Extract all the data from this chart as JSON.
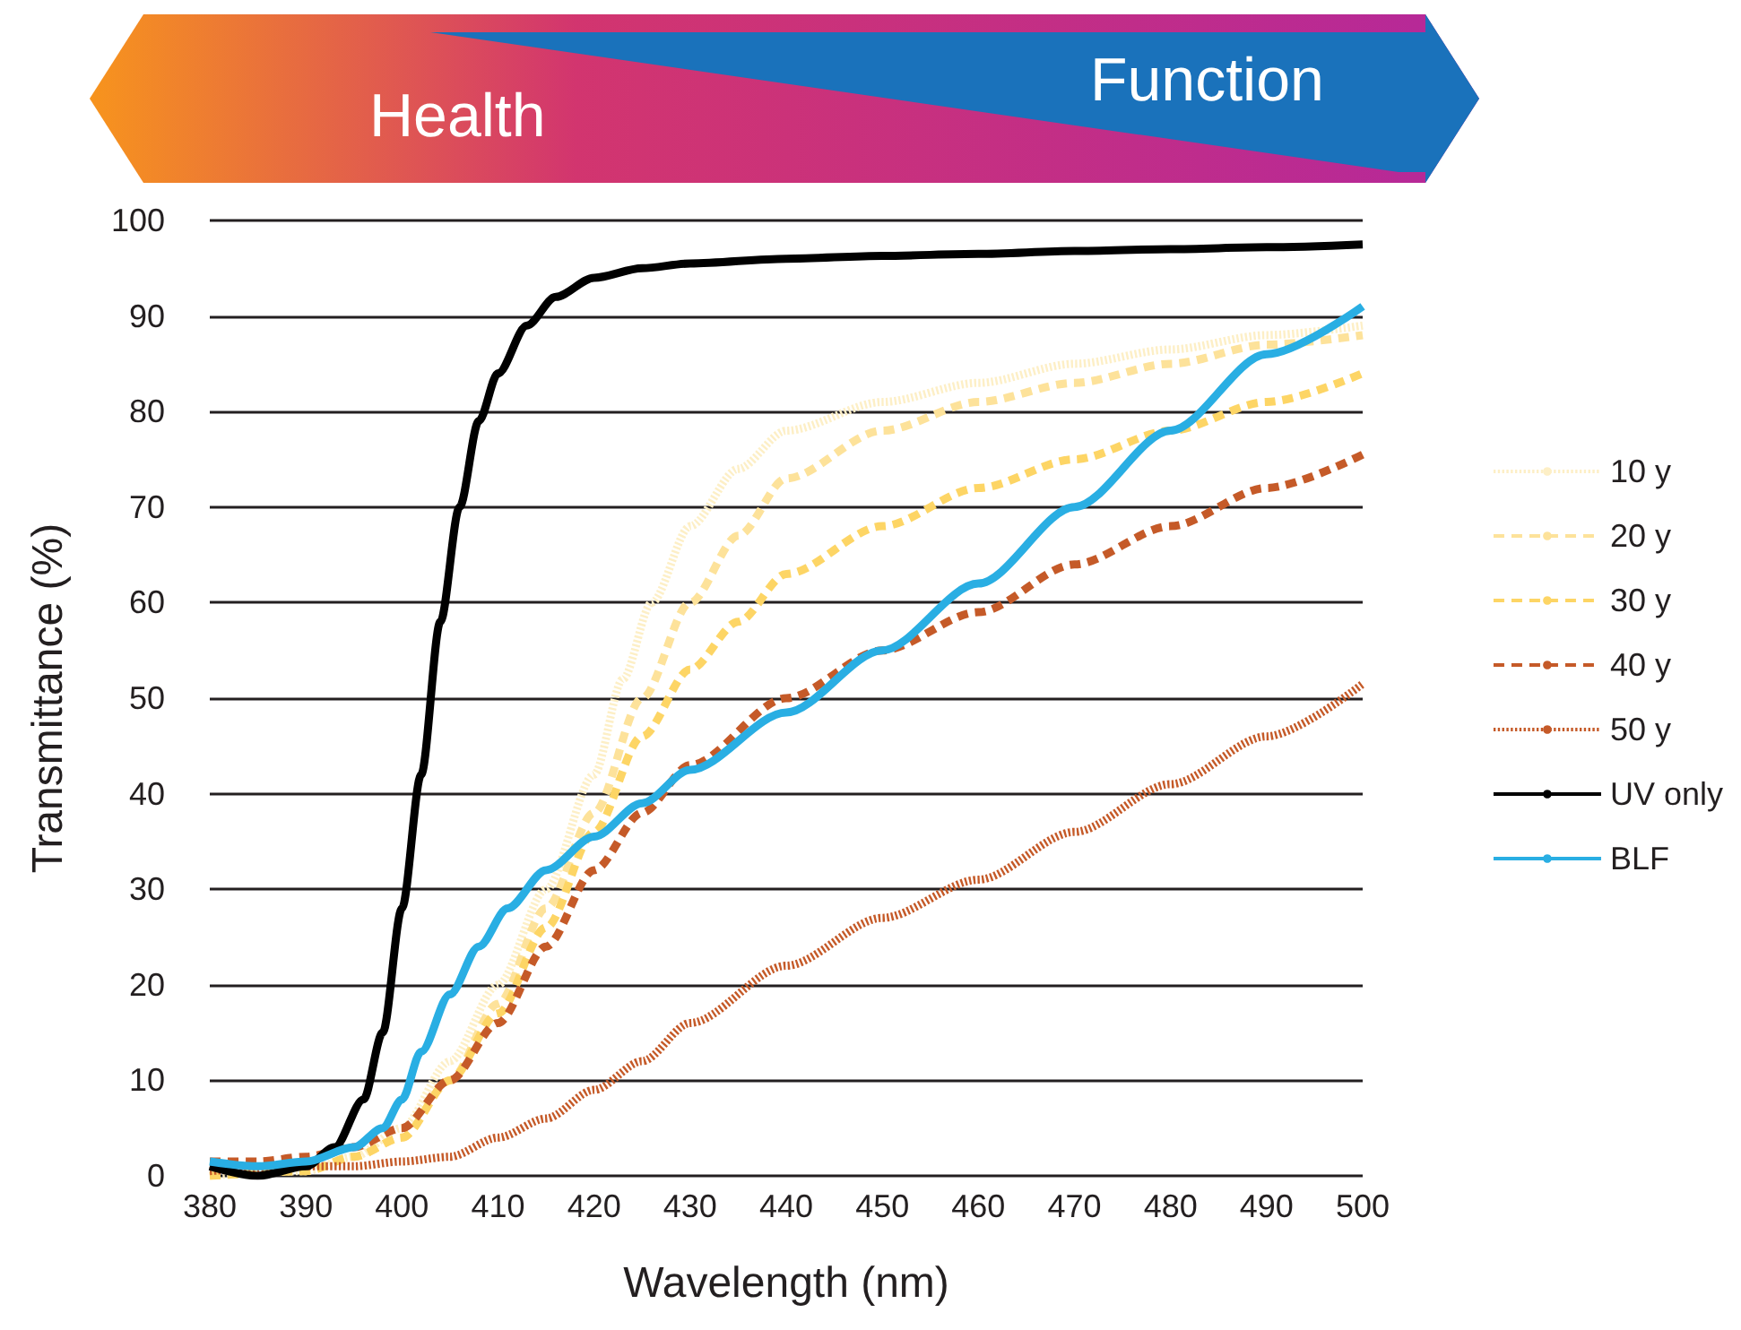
{
  "chart_data": {
    "type": "line",
    "xlabel": "Wavelength (nm)",
    "ylabel": "Transmittance (%)",
    "annotations": [
      "Health",
      "Function"
    ],
    "xlim": [
      380,
      500
    ],
    "xticks": [
      380,
      390,
      400,
      410,
      420,
      430,
      440,
      450,
      460,
      470,
      480,
      490,
      500
    ],
    "ylim": [
      0,
      100
    ],
    "yticks": [
      0,
      10,
      20,
      30,
      40,
      50,
      60,
      70,
      80,
      90,
      100
    ],
    "grid": "y",
    "legend": "right",
    "marker": "none",
    "series": [
      {
        "name": "10 y",
        "color": "#fdefc6",
        "line_style": "dotted",
        "x": [
          380,
          390,
          395,
          400,
          405,
          410,
          415,
          420,
          423,
          426,
          430,
          435,
          440,
          450,
          460,
          470,
          480,
          490,
          500
        ],
        "values": [
          0,
          0.5,
          2,
          5,
          12,
          20,
          30,
          42,
          52,
          60,
          68,
          74,
          78,
          81,
          83,
          85,
          86.5,
          88,
          89
        ]
      },
      {
        "name": "20 y",
        "color": "#fde29a",
        "line_style": "dashed",
        "x": [
          380,
          390,
          395,
          400,
          405,
          410,
          415,
          420,
          425,
          430,
          435,
          440,
          450,
          460,
          470,
          480,
          490,
          500
        ],
        "values": [
          0,
          0.5,
          2,
          4,
          10,
          18,
          28,
          38,
          50,
          60,
          67,
          73,
          78,
          81,
          83,
          85,
          87,
          88
        ]
      },
      {
        "name": "30 y",
        "color": "#fdd565",
        "line_style": "dashed",
        "x": [
          380,
          390,
          395,
          400,
          405,
          410,
          415,
          420,
          425,
          430,
          435,
          440,
          450,
          460,
          470,
          480,
          490,
          500
        ],
        "values": [
          0,
          0.5,
          2,
          4,
          10,
          17,
          26,
          36,
          46,
          53,
          58,
          63,
          68,
          72,
          75,
          78,
          81,
          84
        ]
      },
      {
        "name": "40 y",
        "color": "#c55a28",
        "line_style": "dashed",
        "x": [
          380,
          385,
          390,
          395,
          400,
          405,
          410,
          415,
          420,
          425,
          430,
          440,
          450,
          460,
          470,
          480,
          490,
          500
        ],
        "values": [
          1.5,
          1.5,
          2,
          3,
          5,
          10,
          16,
          24,
          32,
          38,
          43,
          50,
          55,
          59,
          64,
          68,
          72,
          75.5
        ]
      },
      {
        "name": "50 y",
        "color": "#c55a28",
        "line_style": "dotted",
        "x": [
          380,
          390,
          395,
          400,
          405,
          410,
          415,
          420,
          425,
          430,
          440,
          450,
          460,
          470,
          480,
          490,
          500
        ],
        "values": [
          0.5,
          1,
          1,
          1.5,
          2,
          4,
          6,
          9,
          12,
          16,
          22,
          27,
          31,
          36,
          41,
          46,
          51.5
        ]
      },
      {
        "name": "UV only",
        "color": "#000000",
        "line_style": "solid",
        "x": [
          380,
          385,
          390,
          393,
          396,
          398,
          400,
          402,
          404,
          406,
          408,
          410,
          413,
          416,
          420,
          425,
          430,
          440,
          450,
          460,
          470,
          480,
          490,
          500
        ],
        "values": [
          1,
          0,
          1,
          3,
          8,
          15,
          28,
          42,
          58,
          70,
          79,
          84,
          89,
          92,
          94,
          95,
          95.5,
          96,
          96.3,
          96.5,
          96.8,
          97,
          97.2,
          97.5
        ]
      },
      {
        "name": "BLF",
        "color": "#29aee3",
        "line_style": "solid",
        "x": [
          380,
          385,
          390,
          395,
          398,
          400,
          402,
          405,
          408,
          411,
          415,
          420,
          425,
          430,
          440,
          450,
          460,
          470,
          480,
          490,
          500
        ],
        "values": [
          1.5,
          1,
          1.5,
          3,
          5,
          8,
          13,
          19,
          24,
          28,
          32,
          35.5,
          39,
          42.5,
          48.5,
          55,
          62,
          70,
          78,
          86,
          91
        ]
      }
    ]
  }
}
